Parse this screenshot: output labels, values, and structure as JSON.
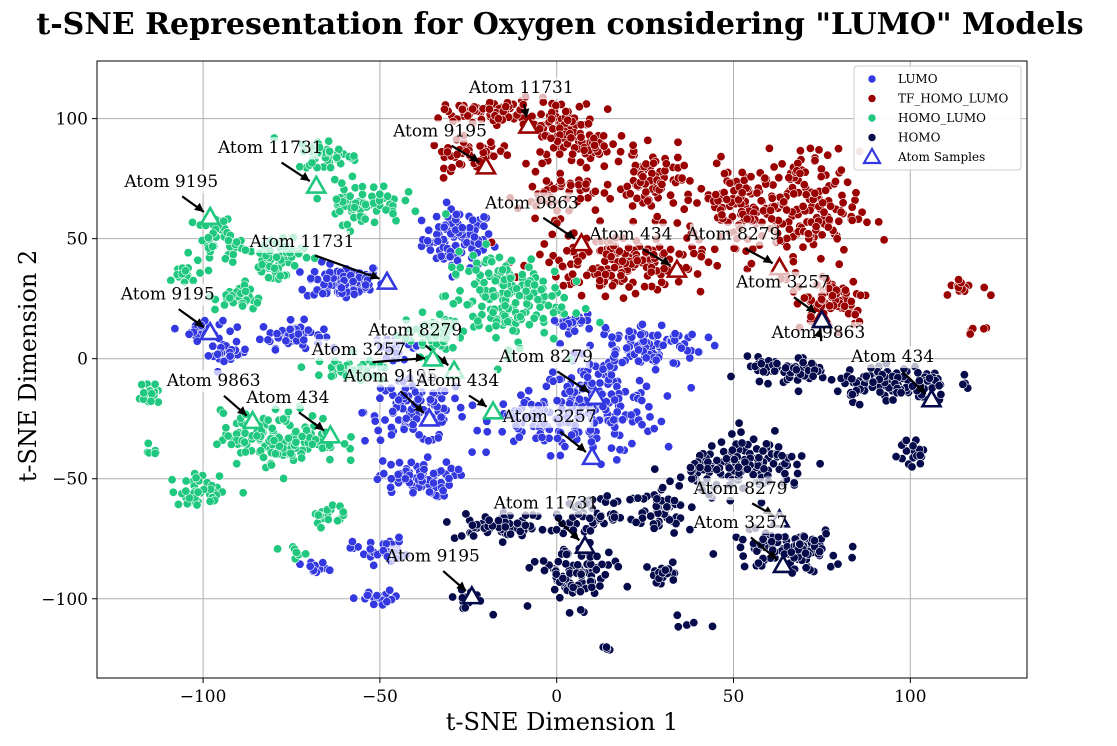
{
  "chart_data": {
    "type": "scatter",
    "title": "t-SNE Representation for Oxygen considering \"LUMO\" Models",
    "xlabel": "t-SNE Dimension 1",
    "ylabel": "t-SNE Dimension 2",
    "xlim": [
      -130,
      133
    ],
    "ylim": [
      -133,
      124
    ],
    "xticks": [
      -100,
      -50,
      0,
      50,
      100
    ],
    "yticks": [
      -100,
      -50,
      0,
      50,
      100
    ],
    "grid": true,
    "legend_position": "top-right",
    "series": [
      {
        "name": "LUMO",
        "color": "#3338e0",
        "clusters": [
          {
            "cx": -28,
            "cy": 50,
            "rx": 9,
            "ry": 11,
            "n": 90
          },
          {
            "cx": -60,
            "cy": 32,
            "rx": 10,
            "ry": 7,
            "n": 80
          },
          {
            "cx": -75,
            "cy": 10,
            "rx": 8,
            "ry": 5,
            "n": 50
          },
          {
            "cx": -100,
            "cy": 12,
            "rx": 5,
            "ry": 4,
            "n": 25
          },
          {
            "cx": -93,
            "cy": 2,
            "rx": 5,
            "ry": 4,
            "n": 25
          },
          {
            "cx": -45,
            "cy": 5,
            "rx": 6,
            "ry": 4,
            "n": 25
          },
          {
            "cx": -40,
            "cy": -22,
            "rx": 13,
            "ry": 12,
            "n": 110
          },
          {
            "cx": -5,
            "cy": -25,
            "rx": 12,
            "ry": 10,
            "n": 80
          },
          {
            "cx": 12,
            "cy": -20,
            "rx": 15,
            "ry": 18,
            "n": 160
          },
          {
            "cx": 25,
            "cy": 5,
            "rx": 15,
            "ry": 9,
            "n": 100
          },
          {
            "cx": -40,
            "cy": -50,
            "rx": 10,
            "ry": 7,
            "n": 70
          },
          {
            "cx": -50,
            "cy": -80,
            "rx": 7,
            "ry": 5,
            "n": 35
          },
          {
            "cx": -50,
            "cy": -100,
            "rx": 6,
            "ry": 3,
            "n": 20
          },
          {
            "cx": -68,
            "cy": -88,
            "rx": 4,
            "ry": 3,
            "n": 12
          },
          {
            "cx": 5,
            "cy": 15,
            "rx": 7,
            "ry": 4,
            "n": 25
          }
        ],
        "samples": [
          {
            "label": "Atom 11731",
            "x": -48,
            "y": 32,
            "tx": -72,
            "ty": 47
          },
          {
            "label": "Atom 9195",
            "x": -98,
            "y": 11,
            "tx": -110,
            "ty": 25
          },
          {
            "label": "Atom 9195",
            "x": -36,
            "y": -25,
            "tx": -47,
            "ty": -9
          },
          {
            "label": "Atom 8279",
            "x": 11,
            "y": -16,
            "tx": -3,
            "ty": -1
          },
          {
            "label": "Atom 3257",
            "x": 10,
            "y": -41,
            "tx": -2,
            "ty": -26
          }
        ]
      },
      {
        "name": "TF_HOMO_LUMO",
        "color": "#9a0000",
        "clusters": [
          {
            "cx": -20,
            "cy": 103,
            "rx": 11,
            "ry": 4,
            "n": 60
          },
          {
            "cx": 0,
            "cy": 98,
            "rx": 10,
            "ry": 9,
            "n": 70
          },
          {
            "cx": 10,
            "cy": 88,
            "rx": 12,
            "ry": 7,
            "n": 60
          },
          {
            "cx": -25,
            "cy": 85,
            "rx": 10,
            "ry": 6,
            "n": 45
          },
          {
            "cx": 0,
            "cy": 68,
            "rx": 10,
            "ry": 8,
            "n": 55
          },
          {
            "cx": 28,
            "cy": 73,
            "rx": 10,
            "ry": 12,
            "n": 80
          },
          {
            "cx": 18,
            "cy": 40,
            "rx": 22,
            "ry": 12,
            "n": 170
          },
          {
            "cx": 50,
            "cy": 65,
            "rx": 8,
            "ry": 15,
            "n": 70
          },
          {
            "cx": 68,
            "cy": 62,
            "rx": 16,
            "ry": 22,
            "n": 190
          },
          {
            "cx": 78,
            "cy": 25,
            "rx": 10,
            "ry": 10,
            "n": 70
          },
          {
            "cx": 115,
            "cy": 30,
            "rx": 5,
            "ry": 3,
            "n": 15
          },
          {
            "cx": 120,
            "cy": 12,
            "rx": 3,
            "ry": 2,
            "n": 6
          }
        ],
        "samples": [
          {
            "label": "Atom 11731",
            "x": -8,
            "y": 97,
            "tx": -10,
            "ty": 111
          },
          {
            "label": "Atom 9195",
            "x": -20,
            "y": 80,
            "tx": -33,
            "ty": 93
          },
          {
            "label": "Atom 9863",
            "x": 7,
            "y": 48,
            "tx": -7,
            "ty": 63
          },
          {
            "label": "Atom 434",
            "x": 34,
            "y": 37,
            "tx": 21,
            "ty": 50
          },
          {
            "label": "Atom 8279",
            "x": 63,
            "y": 38,
            "tx": 50,
            "ty": 50
          },
          {
            "label": "Atom 3257",
            "x": 75,
            "y": 17,
            "tx": 64,
            "ty": 30
          }
        ]
      },
      {
        "name": "HOMO_LUMO",
        "color": "#1fc87e",
        "clusters": [
          {
            "cx": -65,
            "cy": 85,
            "rx": 8,
            "ry": 6,
            "n": 45
          },
          {
            "cx": -55,
            "cy": 65,
            "rx": 10,
            "ry": 8,
            "n": 70
          },
          {
            "cx": -80,
            "cy": 42,
            "rx": 8,
            "ry": 10,
            "n": 60
          },
          {
            "cx": -95,
            "cy": 50,
            "rx": 6,
            "ry": 8,
            "n": 40
          },
          {
            "cx": -105,
            "cy": 35,
            "rx": 4,
            "ry": 4,
            "n": 15
          },
          {
            "cx": -90,
            "cy": 25,
            "rx": 6,
            "ry": 5,
            "n": 30
          },
          {
            "cx": -15,
            "cy": 25,
            "rx": 15,
            "ry": 18,
            "n": 170
          },
          {
            "cx": -35,
            "cy": 10,
            "rx": 8,
            "ry": 8,
            "n": 50
          },
          {
            "cx": -60,
            "cy": -5,
            "rx": 12,
            "ry": 4,
            "n": 40
          },
          {
            "cx": -78,
            "cy": -33,
            "rx": 15,
            "ry": 10,
            "n": 150
          },
          {
            "cx": -100,
            "cy": -55,
            "rx": 8,
            "ry": 6,
            "n": 40
          },
          {
            "cx": -115,
            "cy": -15,
            "rx": 3,
            "ry": 6,
            "n": 20
          },
          {
            "cx": -65,
            "cy": -65,
            "rx": 4,
            "ry": 5,
            "n": 18
          },
          {
            "cx": -75,
            "cy": -80,
            "rx": 3,
            "ry": 2,
            "n": 8
          },
          {
            "cx": -115,
            "cy": -38,
            "rx": 2,
            "ry": 2,
            "n": 6
          }
        ],
        "samples": [
          {
            "label": "Atom 11731",
            "x": -68,
            "y": 72,
            "tx": -81,
            "ty": 86
          },
          {
            "label": "Atom 9195",
            "x": -98,
            "y": 59,
            "tx": -109,
            "ty": 72
          },
          {
            "label": "Atom 9863",
            "x": -86,
            "y": -26,
            "tx": -97,
            "ty": -11
          },
          {
            "label": "Atom 434",
            "x": -64,
            "y": -32,
            "tx": -76,
            "ty": -18
          },
          {
            "label": "Atom 8279",
            "x": -29,
            "y": -5,
            "tx": -40,
            "ty": 10
          },
          {
            "label": "Atom 3257",
            "x": -35,
            "y": 0,
            "tx": -56,
            "ty": 2
          },
          {
            "label": "Atom 434",
            "x": -18,
            "y": -22,
            "tx": -28,
            "ty": -11
          }
        ]
      },
      {
        "name": "HOMO",
        "color": "#050a4a",
        "clusters": [
          {
            "cx": 95,
            "cy": -10,
            "rx": 15,
            "ry": 7,
            "n": 120
          },
          {
            "cx": 65,
            "cy": -5,
            "rx": 10,
            "ry": 5,
            "n": 60
          },
          {
            "cx": 55,
            "cy": -45,
            "rx": 15,
            "ry": 10,
            "n": 140
          },
          {
            "cx": 65,
            "cy": -80,
            "rx": 15,
            "ry": 8,
            "n": 100
          },
          {
            "cx": 30,
            "cy": -60,
            "rx": 8,
            "ry": 10,
            "n": 50
          },
          {
            "cx": 10,
            "cy": -65,
            "rx": 10,
            "ry": 6,
            "n": 50
          },
          {
            "cx": -15,
            "cy": -70,
            "rx": 12,
            "ry": 5,
            "n": 60
          },
          {
            "cx": 5,
            "cy": -90,
            "rx": 10,
            "ry": 12,
            "n": 90
          },
          {
            "cx": -25,
            "cy": -100,
            "rx": 5,
            "ry": 4,
            "n": 20
          },
          {
            "cx": 30,
            "cy": -90,
            "rx": 5,
            "ry": 4,
            "n": 18
          },
          {
            "cx": 100,
            "cy": -40,
            "rx": 4,
            "ry": 6,
            "n": 18
          },
          {
            "cx": 37,
            "cy": -110,
            "rx": 3,
            "ry": 3,
            "n": 8
          },
          {
            "cx": 15,
            "cy": -120,
            "rx": 2,
            "ry": 2,
            "n": 4
          },
          {
            "cx": 40,
            "cy": -45,
            "rx": 4,
            "ry": 3,
            "n": 10
          }
        ],
        "samples": [
          {
            "label": "Atom 9863",
            "x": 75,
            "y": 16,
            "tx": 74,
            "ty": 9
          },
          {
            "label": "Atom 434",
            "x": 106,
            "y": -17,
            "tx": 95,
            "ty": -1
          },
          {
            "label": "Atom 8279",
            "x": 63,
            "y": -67,
            "tx": 52,
            "ty": -56
          },
          {
            "label": "Atom 3257",
            "x": 64,
            "y": -86,
            "tx": 52,
            "ty": -70
          },
          {
            "label": "Atom 11731",
            "x": 8,
            "y": -78,
            "tx": -3,
            "ty": -62
          },
          {
            "label": "Atom 9195",
            "x": -24,
            "y": -99,
            "tx": -35,
            "ty": -84
          }
        ]
      }
    ],
    "legend": [
      {
        "label": "LUMO",
        "color": "#3338e0",
        "marker": "circle"
      },
      {
        "label": "TF_HOMO_LUMO",
        "color": "#9a0000",
        "marker": "circle"
      },
      {
        "label": "HOMO_LUMO",
        "color": "#1fc87e",
        "marker": "circle"
      },
      {
        "label": "HOMO",
        "color": "#050a4a",
        "marker": "circle"
      },
      {
        "label": "Atom Samples",
        "color": "#3338e0",
        "marker": "triangle-outline"
      }
    ],
    "colors": {
      "grid": "#b0b0b0",
      "frame": "#000000",
      "marker_edge": "#ffffff"
    }
  }
}
